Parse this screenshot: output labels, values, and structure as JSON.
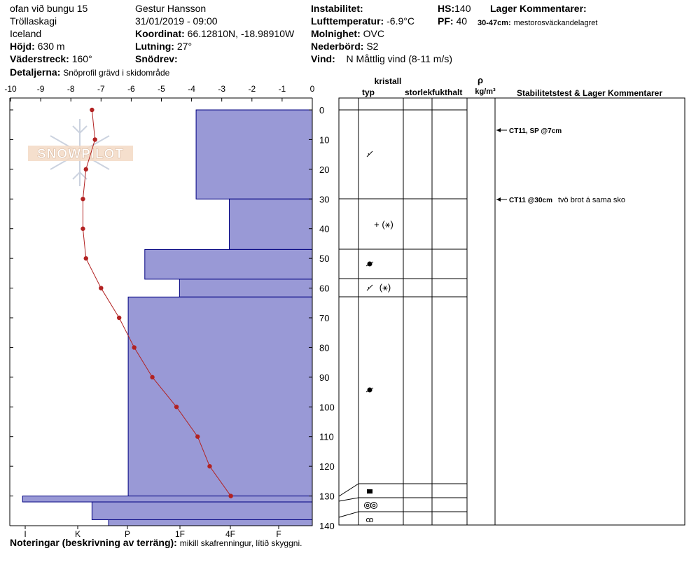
{
  "header": {
    "location": "ofan við bungu 15",
    "region": "Tröllaskagi",
    "country": "Iceland",
    "elevation_label": "Höjd:",
    "elevation_value": "630 m",
    "aspect_label": "Väderstreck:",
    "aspect_value": "160°",
    "details_label": "Detaljerna:",
    "details_value": "Snöprofil grävd i skidområde",
    "observer": "Gestur Hansson",
    "datetime": "31/01/2019 - 09:00",
    "coord_label": "Koordinat:",
    "coord_value": "66.12810N, -18.98910W",
    "slope_label": "Lutning:",
    "slope_value": "27°",
    "snowdrift_label": "Snödrev:",
    "snowdrift_value": "",
    "stability_label": "Instabilitet:",
    "stability_value": "",
    "airtemp_label": "Lufttemperatur:",
    "airtemp_value": "-6.9°C",
    "sky_label": "Molnighet:",
    "sky_value": "OVC",
    "precip_label": "Nederbörd:",
    "precip_value": "S2",
    "wind_label": "Vind:",
    "wind_value": "N Måttlig vind (8-11 m/s)",
    "hs_label": "HS:",
    "hs_value": "140",
    "pf_label": "PF:",
    "pf_value": "40",
    "layer_comments_label": "Lager Kommentarer:",
    "layer_comment_range": "30-47cm:",
    "layer_comment_text": "mestorosväckandelagret"
  },
  "footer": {
    "notes_label": "Noteringar (beskrivning av terräng):",
    "notes_value": "mikill skafrenningur, lítið skyggni."
  },
  "logo": {
    "text": "SNOWPILOT"
  },
  "table": {
    "col_kristall": "kristall",
    "col_typ": "typ",
    "col_storlek": "storlek",
    "col_fukthalt": "fukthalt",
    "col_rho": "ρ",
    "col_rho_unit": "kg/m³",
    "col_comments": "Stabilitetstest & Lager Kommentarer"
  },
  "tests": [
    {
      "depth": 7,
      "label": "CT11, SP @7cm",
      "comment": ""
    },
    {
      "depth": 30,
      "label": "CT11 @30cm",
      "comment": "tvö brot á sama sko"
    }
  ],
  "colors": {
    "hardness_fill": "#9999d6",
    "hardness_stroke": "#000080",
    "temperature": "#b22222"
  },
  "chart_data": {
    "type": "snow-profile",
    "temp_axis": {
      "ticks": [
        "-10",
        "-9",
        "-8",
        "-7",
        "-6",
        "-5",
        "-4",
        "-3",
        "-2",
        "-1",
        "0"
      ],
      "range": [
        -10,
        0
      ]
    },
    "depth_axis": {
      "ticks": [
        "0",
        "10",
        "20",
        "30",
        "40",
        "50",
        "60",
        "70",
        "80",
        "90",
        "100",
        "110",
        "120",
        "130",
        "140"
      ],
      "range": [
        0,
        140
      ]
    },
    "hardness_axis": {
      "ticks": [
        "I",
        "K",
        "P",
        "1F",
        "4F",
        "F"
      ]
    },
    "temperature_profile": [
      {
        "depth": 0,
        "temp": -7.3
      },
      {
        "depth": 10,
        "temp": -7.2
      },
      {
        "depth": 20,
        "temp": -7.5
      },
      {
        "depth": 30,
        "temp": -7.6
      },
      {
        "depth": 40,
        "temp": -7.6
      },
      {
        "depth": 50,
        "temp": -7.5
      },
      {
        "depth": 60,
        "temp": -7.0
      },
      {
        "depth": 70,
        "temp": -6.4
      },
      {
        "depth": 80,
        "temp": -5.9
      },
      {
        "depth": 90,
        "temp": -5.3
      },
      {
        "depth": 100,
        "temp": -4.5
      },
      {
        "depth": 110,
        "temp": -3.8
      },
      {
        "depth": 120,
        "temp": -3.4
      },
      {
        "depth": 130,
        "temp": -2.7
      }
    ],
    "hardness_layers": [
      {
        "top": 0,
        "bottom": 30,
        "value": 3.85
      },
      {
        "top": 30,
        "bottom": 47,
        "value": 2.75
      },
      {
        "top": 47,
        "bottom": 57,
        "value": 5.55
      },
      {
        "top": 57,
        "bottom": 63,
        "value": 4.4
      },
      {
        "top": 63,
        "bottom": 130,
        "value": 6.1
      },
      {
        "top": 130,
        "bottom": 132,
        "value": 9.6
      },
      {
        "top": 132,
        "bottom": 138,
        "value": 7.3
      },
      {
        "top": 138,
        "bottom": 140,
        "value": 6.75
      }
    ],
    "crystal_layers": [
      {
        "top": 0,
        "bottom": 30,
        "grain": "decomposing"
      },
      {
        "top": 30,
        "bottom": 47,
        "grain": "+ (⚹)"
      },
      {
        "top": 47,
        "bottom": 57,
        "grain": "rounded"
      },
      {
        "top": 57,
        "bottom": 63,
        "grain": "decomposing (⚹)"
      },
      {
        "top": 63,
        "bottom": 130,
        "grain": "rounded"
      },
      {
        "top": 130,
        "bottom": 132,
        "grain": "faceted"
      },
      {
        "top": 132,
        "bottom": 138,
        "grain": "melt-freeze"
      },
      {
        "top": 138,
        "bottom": 140,
        "grain": "depth-hoar"
      }
    ]
  }
}
